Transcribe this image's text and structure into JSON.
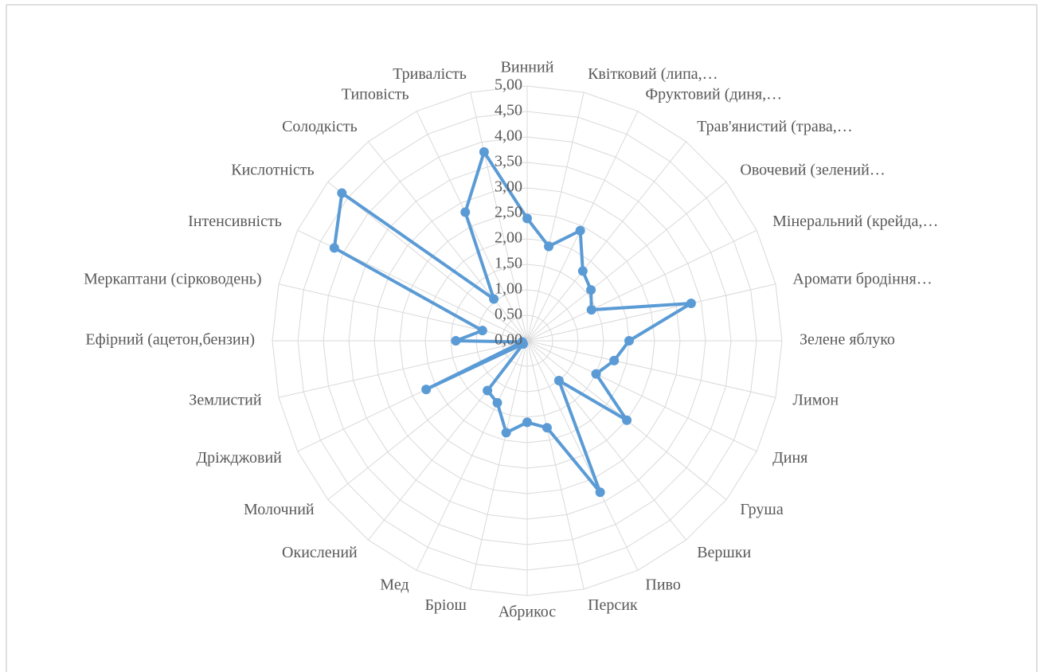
{
  "chart_data": {
    "type": "radar",
    "categories": [
      "Винний",
      "Квітковий (липа,…",
      "Фруктовий (диня,…",
      "Трав'янистий (трава,…",
      "Овочевий (зелений…",
      "Мінеральний (крейда,…",
      "Аромати бродіння…",
      "Зелене яблуко",
      "Лимон",
      "Диня",
      "Груша",
      "Вершки",
      "Пиво",
      "Персик",
      "Абрикос",
      "Бріош",
      "Мед",
      "Окислений",
      "Молочний",
      "Дріжджовий",
      "Землистий",
      "Ефірний (ацетон,бензин)",
      "Меркаптани (сірководень)",
      "Інтенсивність",
      "Кислотність",
      "Солодкість",
      "Типовість",
      "Тривалість"
    ],
    "series": [
      {
        "color": "#5b9bd5",
        "values": [
          2.4,
          1.9,
          2.4,
          1.75,
          1.6,
          1.4,
          3.3,
          2.0,
          1.75,
          1.5,
          2.5,
          1.0,
          3.3,
          1.75,
          1.6,
          1.85,
          1.35,
          1.25,
          0.1,
          2.2,
          0.1,
          1.4,
          0.9,
          4.2,
          4.65,
          1.05,
          2.8,
          3.8
        ]
      }
    ],
    "ylim": [
      0,
      5
    ],
    "yticks": [
      {
        "value": 0,
        "label": "0,00"
      },
      {
        "value": 0.5,
        "label": "0,50"
      },
      {
        "value": 1,
        "label": "1,00"
      },
      {
        "value": 1.5,
        "label": "1,50"
      },
      {
        "value": 2,
        "label": "2,00"
      },
      {
        "value": 2.5,
        "label": "2,50"
      },
      {
        "value": 3,
        "label": "3,00"
      },
      {
        "value": 3.5,
        "label": "3,50"
      },
      {
        "value": 4,
        "label": "4,00"
      },
      {
        "value": 4.5,
        "label": "4,50"
      },
      {
        "value": 5,
        "label": "5,00"
      }
    ],
    "grid": true
  }
}
